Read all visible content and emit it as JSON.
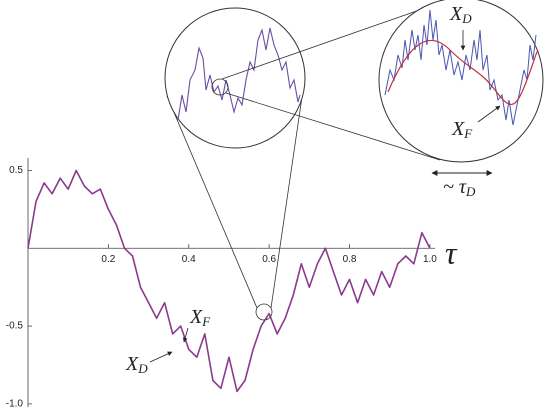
{
  "chart_data": {
    "type": "line",
    "x_label": "τ",
    "x": [
      0,
      0.02,
      0.04,
      0.06,
      0.08,
      0.1,
      0.12,
      0.14,
      0.16,
      0.18,
      0.2,
      0.22,
      0.24,
      0.26,
      0.28,
      0.3,
      0.32,
      0.34,
      0.36,
      0.38,
      0.4,
      0.42,
      0.44,
      0.46,
      0.48,
      0.5,
      0.52,
      0.54,
      0.56,
      0.58,
      0.6,
      0.62,
      0.64,
      0.66,
      0.68,
      0.7,
      0.72,
      0.74,
      0.76,
      0.78,
      0.8,
      0.82,
      0.84,
      0.86,
      0.88,
      0.9,
      0.92,
      0.94,
      0.96,
      0.98,
      1.0
    ],
    "series": [
      {
        "color": "#8b3a8b",
        "values": [
          0.0,
          0.3,
          0.42,
          0.35,
          0.45,
          0.38,
          0.5,
          0.4,
          0.35,
          0.38,
          0.25,
          0.15,
          0.0,
          -0.05,
          -0.25,
          -0.35,
          -0.45,
          -0.35,
          -0.55,
          -0.5,
          -0.65,
          -0.7,
          -0.55,
          -0.85,
          -0.9,
          -0.7,
          -0.92,
          -0.85,
          -0.65,
          -0.5,
          -0.42,
          -0.55,
          -0.45,
          -0.3,
          -0.1,
          -0.25,
          -0.1,
          0.0,
          -0.15,
          -0.3,
          -0.2,
          -0.35,
          -0.2,
          -0.3,
          -0.15,
          -0.25,
          -0.1,
          -0.05,
          -0.1,
          0.1,
          0.0
        ]
      }
    ],
    "xlim": [
      0,
      1.05
    ],
    "ylim": [
      -1.02,
      0.58
    ],
    "xticks": [
      0.2,
      0.4,
      0.6,
      0.8,
      {
        "value": 1,
        "label": "1.0"
      }
    ],
    "yticks": [
      0.5,
      -0.5,
      {
        "value": -1,
        "label": "-1.0"
      }
    ],
    "annotations": [
      {
        "text": "X",
        "sub": "F"
      },
      {
        "text": "X",
        "sub": "D"
      },
      {
        "text": "X",
        "sub": "D"
      },
      {
        "text": "X",
        "sub": "F"
      },
      {
        "text": "~ τ",
        "sub": "D"
      }
    ]
  }
}
